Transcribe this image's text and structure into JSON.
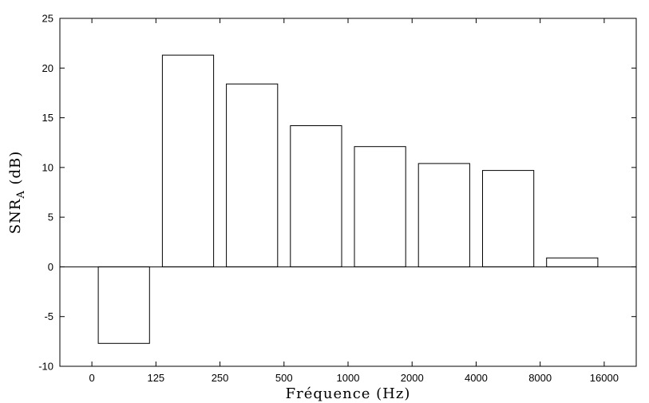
{
  "chart_data": {
    "type": "bar",
    "title": "",
    "xlabel": "Fréquence (Hz)",
    "ylabel": "SNR",
    "ylabel_subscript": "A",
    "ylabel_unit": "(dB)",
    "categories": [
      "0-125",
      "125-250",
      "250-500",
      "500-1000",
      "1000-2000",
      "2000-4000",
      "4000-8000",
      "8000-16000"
    ],
    "values": [
      -7.7,
      21.3,
      18.4,
      14.2,
      12.1,
      10.4,
      9.7,
      0.9
    ],
    "x_tick_labels": [
      "0",
      "125",
      "250",
      "500",
      "1000",
      "2000",
      "4000",
      "8000",
      "16000"
    ],
    "y_ticks": [
      -10,
      -5,
      0,
      5,
      10,
      15,
      20,
      25
    ],
    "ylim": [
      -10,
      25
    ],
    "grid": false,
    "legend": "none",
    "bar_fill": "#ffffff",
    "bar_edge": "#000000"
  }
}
